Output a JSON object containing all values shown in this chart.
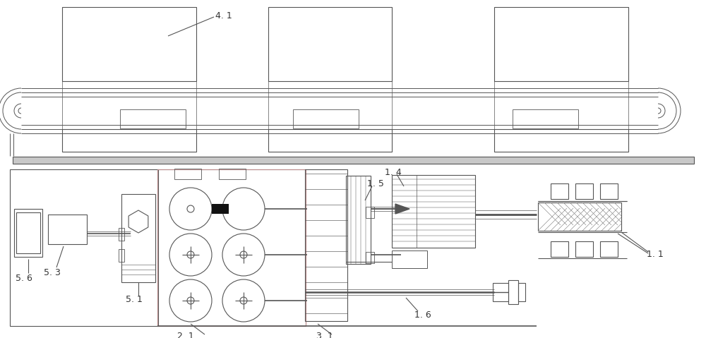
{
  "bg": "#ffffff",
  "lc": "#555555",
  "lw": 0.8,
  "tlw": 0.5,
  "fs": 8.5,
  "tc": "#333333"
}
